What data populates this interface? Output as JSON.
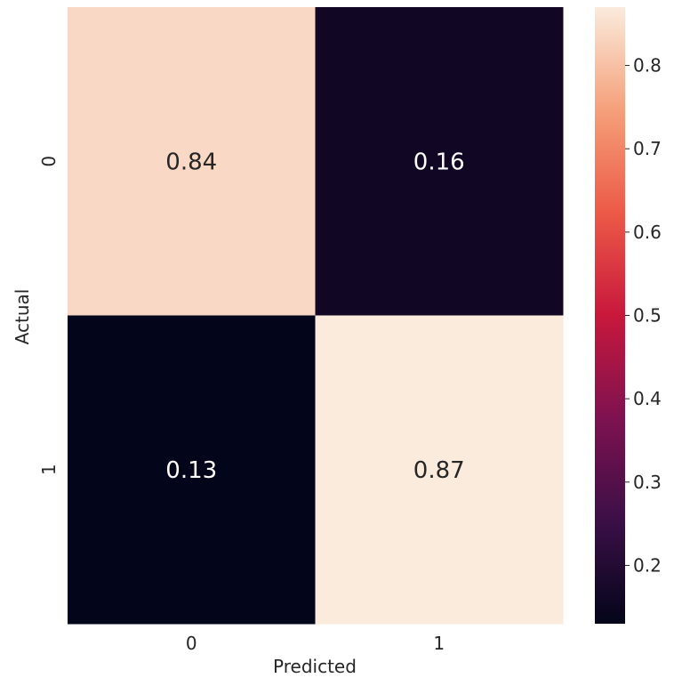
{
  "chart_data": {
    "type": "heatmap",
    "xlabel": "Predicted",
    "ylabel": "Actual",
    "x_categories": [
      "0",
      "1"
    ],
    "y_categories": [
      "0",
      "1"
    ],
    "values": [
      [
        0.84,
        0.16
      ],
      [
        0.13,
        0.87
      ]
    ],
    "labels": [
      [
        "0.84",
        "0.16"
      ],
      [
        "0.13",
        "0.87"
      ]
    ],
    "colorbar": {
      "range": [
        0.13,
        0.87
      ],
      "ticks": [
        0.2,
        0.3,
        0.4,
        0.5,
        0.6,
        0.7,
        0.8
      ],
      "tick_labels": [
        "0.2",
        "0.3",
        "0.4",
        "0.5",
        "0.6",
        "0.7",
        "0.8"
      ]
    },
    "colormap": "rocket",
    "colormap_stops": [
      "#03051a",
      "#3b0f46",
      "#7e1250",
      "#c8183c",
      "#ec5a47",
      "#f5a07a",
      "#faebdd"
    ]
  }
}
